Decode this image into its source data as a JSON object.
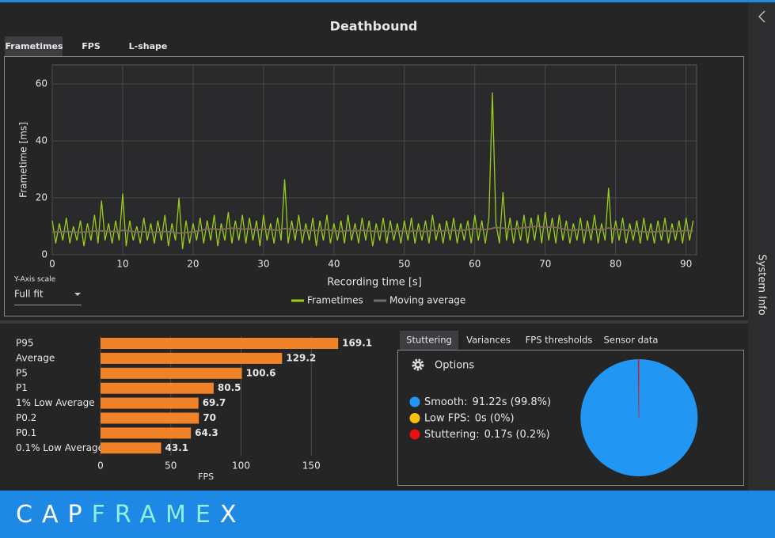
{
  "title": "Deathbound",
  "tabs": [
    "Frametimes",
    "FPS",
    "L-shape"
  ],
  "controls": {
    "label": "Y-Axis scale",
    "value": "Full fit"
  },
  "bottom_tabs": [
    "Stuttering",
    "Variances",
    "FPS thresholds",
    "Sensor data"
  ],
  "options_label": "Options",
  "side_label": "System Info",
  "brand": [
    "CAP",
    "FRAME",
    "X"
  ],
  "chart_data": [
    {
      "type": "line",
      "x_label": "Recording time [s]",
      "y_label": "Frametime [ms]",
      "xlim": [
        0,
        91.5
      ],
      "ylim": [
        0,
        66.7
      ],
      "xticks": [
        0,
        10,
        20,
        30,
        40,
        50,
        60,
        70,
        80,
        90
      ],
      "yticks": [
        0,
        20,
        40,
        60
      ],
      "grid": true,
      "series": [
        {
          "name": "Frametimes",
          "color": "#9acd1a",
          "x": [
            0,
            0.5,
            1,
            1.5,
            2,
            2.5,
            3,
            3.5,
            4,
            4.5,
            5,
            5.5,
            6,
            6.5,
            7,
            7.5,
            8,
            8.5,
            9,
            9.5,
            10,
            10.5,
            11,
            11.5,
            12,
            12.5,
            13,
            13.5,
            14,
            14.5,
            15,
            15.5,
            16,
            16.5,
            17,
            17.5,
            18,
            18.5,
            19,
            19.5,
            20,
            20.5,
            21,
            21.5,
            22,
            22.5,
            23,
            23.5,
            24,
            24.5,
            25,
            25.5,
            26,
            26.5,
            27,
            27.5,
            28,
            28.5,
            29,
            29.5,
            30,
            30.5,
            31,
            31.5,
            32,
            32.5,
            33,
            33.5,
            34,
            34.5,
            35,
            35.5,
            36,
            36.5,
            37,
            37.5,
            38,
            38.5,
            39,
            39.5,
            40,
            40.5,
            41,
            41.5,
            42,
            42.5,
            43,
            43.5,
            44,
            44.5,
            45,
            45.5,
            46,
            46.5,
            47,
            47.5,
            48,
            48.5,
            49,
            49.5,
            50,
            50.5,
            51,
            51.5,
            52,
            52.5,
            53,
            53.5,
            54,
            54.5,
            55,
            55.5,
            56,
            56.5,
            57,
            57.5,
            58,
            58.5,
            59,
            59.5,
            60,
            60.5,
            61,
            61.5,
            62,
            62.5,
            63,
            63.5,
            64,
            64.5,
            65,
            65.5,
            66,
            66.5,
            67,
            67.5,
            68,
            68.5,
            69,
            69.5,
            70,
            70.5,
            71,
            71.5,
            72,
            72.5,
            73,
            73.5,
            74,
            74.5,
            75,
            75.5,
            76,
            76.5,
            77,
            77.5,
            78,
            78.5,
            79,
            79.5,
            80,
            80.5,
            81,
            81.5,
            82,
            82.5,
            83,
            83.5,
            84,
            84.5,
            85,
            85.5,
            86,
            86.5,
            87,
            87.5,
            88,
            88.5,
            89,
            89.5,
            90,
            90.5,
            91
          ],
          "values": [
            12,
            4,
            11,
            5,
            13,
            4,
            10,
            5,
            12,
            3,
            11,
            5,
            14,
            4,
            19,
            5,
            11,
            4,
            12,
            5,
            21.5,
            3,
            12,
            5,
            10,
            4,
            13,
            5,
            11,
            4,
            12,
            5,
            14,
            3,
            11,
            5,
            20,
            2,
            12,
            4,
            11,
            5,
            13,
            4,
            12,
            5,
            14,
            3,
            11,
            5,
            15,
            4,
            12,
            5,
            14,
            4,
            13,
            5,
            12,
            3,
            14,
            5,
            11,
            4,
            13,
            5,
            26.5,
            4,
            12,
            5,
            14,
            4,
            11,
            5,
            13,
            3,
            12,
            5,
            14,
            4,
            11,
            5,
            12,
            4,
            14,
            5,
            11,
            4,
            13,
            5,
            12,
            3,
            11,
            5,
            13,
            4,
            12,
            5,
            11,
            4,
            12,
            5,
            13,
            4,
            11,
            5,
            12,
            4,
            14,
            5,
            11,
            4,
            12,
            5,
            13,
            4,
            11,
            5,
            12,
            4,
            14,
            5,
            12,
            4,
            13,
            57,
            11,
            4,
            22,
            5,
            13,
            4,
            12,
            5,
            14,
            4,
            13,
            5,
            14,
            4,
            15,
            5,
            13,
            4,
            14,
            5,
            12,
            4,
            11,
            5,
            13,
            4,
            12,
            5,
            14,
            4,
            11,
            5,
            23.5,
            4,
            12,
            5,
            13,
            4,
            11,
            5,
            12,
            4,
            13,
            5,
            11,
            4,
            12,
            5,
            13,
            4,
            11,
            5,
            12,
            4,
            13,
            5,
            12
          ]
        },
        {
          "name": "Moving average",
          "color": "#7b6a5c",
          "x": [
            0,
            1,
            2,
            3,
            4,
            5,
            6,
            7,
            8,
            9,
            10,
            11,
            12,
            13,
            14,
            15,
            16,
            17,
            18,
            19,
            20,
            21,
            22,
            23,
            24,
            25,
            26,
            27,
            28,
            29,
            30,
            31,
            32,
            33,
            34,
            35,
            36,
            37,
            38,
            39,
            40,
            41,
            42,
            43,
            44,
            45,
            46,
            47,
            48,
            49,
            50,
            51,
            52,
            53,
            54,
            55,
            56,
            57,
            58,
            59,
            60,
            61,
            62,
            63,
            64,
            65,
            66,
            67,
            68,
            69,
            70,
            71,
            72,
            73,
            74,
            75,
            76,
            77,
            78,
            79,
            80,
            81,
            82,
            83,
            84,
            85,
            86,
            87,
            88,
            89,
            90,
            91
          ],
          "values": [
            8,
            8,
            8.2,
            8,
            7.9,
            8.1,
            8.3,
            8.4,
            8.2,
            8.1,
            8.6,
            8.3,
            8,
            8.1,
            7.9,
            8,
            8.2,
            8,
            7.6,
            7.8,
            8,
            8.5,
            9,
            9.1,
            8.8,
            9.2,
            9.4,
            9,
            9.1,
            8.7,
            9,
            8.8,
            8.6,
            9.2,
            9,
            8.7,
            8.4,
            8.6,
            8.5,
            8.8,
            8.4,
            8.2,
            8.5,
            8.3,
            8.6,
            8.4,
            8.2,
            8.3,
            8.1,
            8.4,
            8.2,
            8.3,
            8.5,
            8.1,
            8.6,
            8.3,
            8.5,
            8.6,
            8.4,
            8.9,
            9.2,
            8.8,
            9,
            9.6,
            9.4,
            9,
            9.2,
            9.5,
            9.8,
            10,
            9.6,
            9.8,
            9.4,
            8.8,
            8.6,
            8.9,
            8.5,
            9,
            8.7,
            9.4,
            8.9,
            8.8,
            8.5,
            8.3,
            8.1,
            8,
            8.2,
            8.4,
            8.2,
            8.3,
            8.5,
            8.4
          ]
        }
      ]
    },
    {
      "type": "bar",
      "orientation": "horizontal",
      "x_label": "FPS",
      "color": "#f08228",
      "categories": [
        "P95",
        "Average",
        "P5",
        "P1",
        "1% Low Average",
        "P0.2",
        "P0.1",
        "0.1% Low Average"
      ],
      "values": [
        169.1,
        129.2,
        100.6,
        80.5,
        69.7,
        70,
        64.3,
        43.1
      ],
      "xlim": [
        0,
        200
      ],
      "xticks": [
        0,
        50,
        100,
        150
      ],
      "grid": true
    },
    {
      "type": "pie",
      "categories": [
        "Smooth:",
        "Low FPS:",
        "Stuttering:"
      ],
      "values": [
        99.8,
        0,
        0.2
      ],
      "value_labels": [
        "91.22s (99.8%)",
        "0s (0%)",
        "0.17s (0.2%)"
      ],
      "colors": [
        "#2196f3",
        "#ffc107",
        "#e81010"
      ]
    }
  ]
}
